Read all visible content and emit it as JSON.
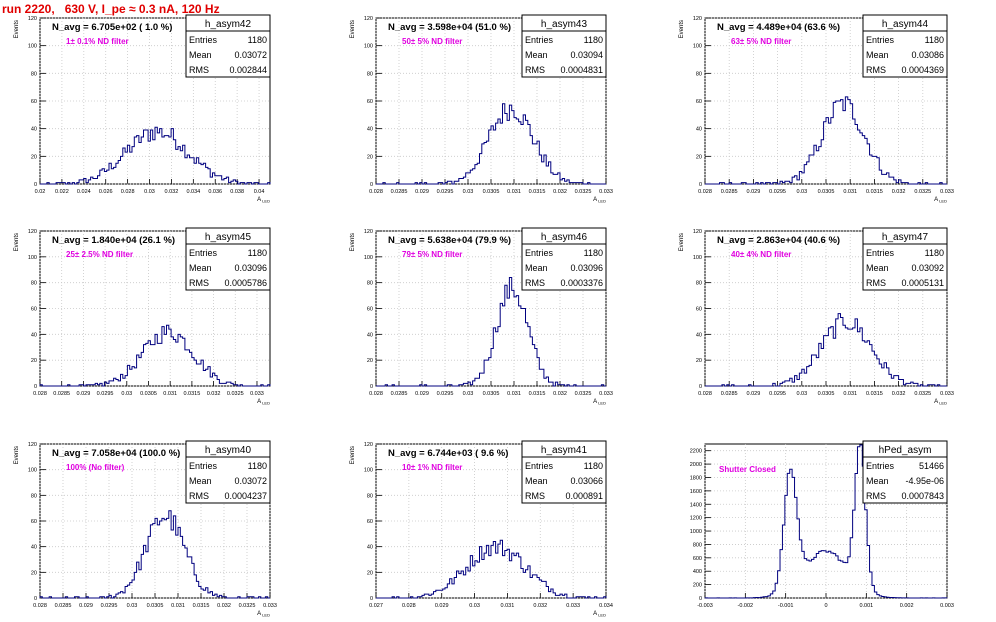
{
  "title": "run 2220,   630 V, I_pe ≈ 0.3 nA, 120 Hz",
  "colors": {
    "title": "#e00000",
    "histogram": "#00007f",
    "annotation": "#e000e0",
    "grid": "#c8c8c8"
  },
  "chart_data": [
    {
      "type": "histogram",
      "name": "h_asym42",
      "navg": "N_avg = 6.705e+02 ( 1.0 %)",
      "annotation": "1± 0.1% ND filter",
      "stats": {
        "entries": "1180",
        "mean": "0.03072",
        "rms": "0.002844"
      },
      "ylabel": "Events",
      "xlabel": "A_LED",
      "xlim": [
        0.02,
        0.041
      ],
      "ylim": [
        0,
        120
      ],
      "grid": true,
      "xticks": [
        "0.02",
        "0.022",
        "0.024",
        "0.026",
        "0.028",
        "0.03",
        "0.032",
        "0.034",
        "0.036",
        "0.038",
        "0.04"
      ],
      "yticks": [
        "0",
        "20",
        "40",
        "60",
        "80",
        "100",
        "120"
      ],
      "gauss": {
        "mu": 0.03072,
        "sigma": 0.002844,
        "peak": 38,
        "bins": 100
      }
    },
    {
      "type": "histogram",
      "name": "h_asym43",
      "navg": "N_avg = 3.598e+04 (51.0 %)",
      "annotation": "50± 5% ND filter",
      "stats": {
        "entries": "1180",
        "mean": "0.03094",
        "rms": "0.0004831"
      },
      "ylabel": "Events",
      "xlabel": "A_LED",
      "xlim": [
        0.028,
        0.033
      ],
      "ylim": [
        0,
        120
      ],
      "grid": true,
      "xticks": [
        "0.028",
        "0.0285",
        "0.029",
        "0.0295",
        "0.03",
        "0.0305",
        "0.031",
        "0.0315",
        "0.032",
        "0.0325",
        "0.033"
      ],
      "yticks": [
        "0",
        "20",
        "40",
        "60",
        "80",
        "100",
        "120"
      ],
      "gauss": {
        "mu": 0.03094,
        "sigma": 0.00048,
        "peak": 55,
        "bins": 100
      }
    },
    {
      "type": "histogram",
      "name": "h_asym44",
      "navg": "N_avg = 4.489e+04 (63.6 %)",
      "annotation": "63± 5% ND filter",
      "stats": {
        "entries": "1180",
        "mean": "0.03086",
        "rms": "0.0004369"
      },
      "ylabel": "Events",
      "xlabel": "A_LED",
      "xlim": [
        0.028,
        0.033
      ],
      "ylim": [
        0,
        120
      ],
      "grid": true,
      "xticks": [
        "0.028",
        "0.0285",
        "0.029",
        "0.0295",
        "0.03",
        "0.0305",
        "0.031",
        "0.0315",
        "0.032",
        "0.0325",
        "0.033"
      ],
      "yticks": [
        "0",
        "20",
        "40",
        "60",
        "80",
        "100",
        "120"
      ],
      "gauss": {
        "mu": 0.03086,
        "sigma": 0.00044,
        "peak": 58,
        "bins": 100
      }
    },
    {
      "type": "histogram",
      "name": "h_asym45",
      "navg": "N_avg = 1.840e+04 (26.1 %)",
      "annotation": "25± 2.5% ND filter",
      "stats": {
        "entries": "1180",
        "mean": "0.03096",
        "rms": "0.0005786"
      },
      "ylabel": "Events",
      "xlabel": "A_LED",
      "xlim": [
        0.028,
        0.0333
      ],
      "ylim": [
        0,
        120
      ],
      "grid": true,
      "xticks": [
        "0.028",
        "0.0285",
        "0.029",
        "0.0295",
        "0.03",
        "0.0305",
        "0.031",
        "0.0315",
        "0.032",
        "0.0325",
        "0.033"
      ],
      "yticks": [
        "0",
        "20",
        "40",
        "60",
        "80",
        "100",
        "120"
      ],
      "gauss": {
        "mu": 0.03096,
        "sigma": 0.00058,
        "peak": 42,
        "bins": 100
      }
    },
    {
      "type": "histogram",
      "name": "h_asym46",
      "navg": "N_avg = 5.638e+04 (79.9 %)",
      "annotation": "79± 5% ND filter",
      "stats": {
        "entries": "1180",
        "mean": "0.03096",
        "rms": "0.0003376"
      },
      "ylabel": "Events",
      "xlabel": "A_LED",
      "xlim": [
        0.028,
        0.033
      ],
      "ylim": [
        0,
        120
      ],
      "grid": true,
      "xticks": [
        "0.028",
        "0.0285",
        "0.029",
        "0.0295",
        "0.03",
        "0.0305",
        "0.031",
        "0.0315",
        "0.032",
        "0.0325",
        "0.033"
      ],
      "yticks": [
        "0",
        "20",
        "40",
        "60",
        "80",
        "100",
        "120"
      ],
      "gauss": {
        "mu": 0.03096,
        "sigma": 0.00034,
        "peak": 76,
        "bins": 100
      }
    },
    {
      "type": "histogram",
      "name": "h_asym47",
      "navg": "N_avg = 2.863e+04 (40.6 %)",
      "annotation": "40± 4% ND filter",
      "stats": {
        "entries": "1180",
        "mean": "0.03092",
        "rms": "0.0005131"
      },
      "ylabel": "Events",
      "xlabel": "A_LED",
      "xlim": [
        0.028,
        0.033
      ],
      "ylim": [
        0,
        120
      ],
      "grid": true,
      "xticks": [
        "0.028",
        "0.0285",
        "0.029",
        "0.0295",
        "0.03",
        "0.0305",
        "0.031",
        "0.0315",
        "0.032",
        "0.0325",
        "0.033"
      ],
      "yticks": [
        "0",
        "20",
        "40",
        "60",
        "80",
        "100",
        "120"
      ],
      "gauss": {
        "mu": 0.03092,
        "sigma": 0.00051,
        "peak": 50,
        "bins": 100
      }
    },
    {
      "type": "histogram",
      "name": "h_asym40",
      "navg": "N_avg = 7.058e+04 (100.0 %)",
      "annotation": "100% (No filter)",
      "stats": {
        "entries": "1180",
        "mean": "0.03072",
        "rms": "0.0004237"
      },
      "ylabel": "Events",
      "xlabel": "A_LED",
      "xlim": [
        0.028,
        0.033
      ],
      "ylim": [
        0,
        120
      ],
      "grid": true,
      "xticks": [
        "0.028",
        "0.0285",
        "0.029",
        "0.0295",
        "0.03",
        "0.0305",
        "0.031",
        "0.0315",
        "0.032",
        "0.0325",
        "0.033"
      ],
      "yticks": [
        "0",
        "20",
        "40",
        "60",
        "80",
        "100",
        "120"
      ],
      "gauss": {
        "mu": 0.03072,
        "sigma": 0.00042,
        "peak": 64,
        "bins": 100
      }
    },
    {
      "type": "histogram",
      "name": "h_asym41",
      "navg": "N_avg = 6.744e+03 ( 9.6 %)",
      "annotation": "10± 1% ND filter",
      "stats": {
        "entries": "1180",
        "mean": "0.03066",
        "rms": "0.000891"
      },
      "ylabel": "Events",
      "xlabel": "A_LED",
      "xlim": [
        0.027,
        0.034
      ],
      "ylim": [
        0,
        120
      ],
      "grid": true,
      "xticks": [
        "0.027",
        "0.028",
        "0.029",
        "0.03",
        "0.031",
        "0.032",
        "0.033",
        "0.034"
      ],
      "yticks": [
        "0",
        "20",
        "40",
        "60",
        "80",
        "100",
        "120"
      ],
      "gauss": {
        "mu": 0.03066,
        "sigma": 0.00089,
        "peak": 40,
        "bins": 100
      }
    },
    {
      "type": "histogram",
      "name": "hPed_asym",
      "navg": "",
      "annotation": "Shutter Closed",
      "stats": {
        "entries": "51466",
        "mean": "-4.95e-06",
        "rms": "0.0007843"
      },
      "ylabel": "",
      "xlabel": "",
      "xlim": [
        -0.003,
        0.003
      ],
      "ylim": [
        0,
        2300
      ],
      "grid": true,
      "xticks": [
        "-0.003",
        "-0.002",
        "-0.001",
        "0",
        "0.001",
        "0.002",
        "0.003"
      ],
      "yticks": [
        "0",
        "200",
        "400",
        "600",
        "800",
        "1000",
        "1200",
        "1400",
        "1600",
        "1800",
        "2000",
        "2200"
      ],
      "bimodal": {
        "peaks": [
          {
            "mu": -0.00088,
            "sigma": 0.00016,
            "amp": 1750
          },
          {
            "mu": 0.00085,
            "sigma": 0.00013,
            "amp": 2150
          },
          {
            "mu": 0.0,
            "sigma": 0.00055,
            "amp": 700
          }
        ],
        "bins": 100
      }
    }
  ]
}
